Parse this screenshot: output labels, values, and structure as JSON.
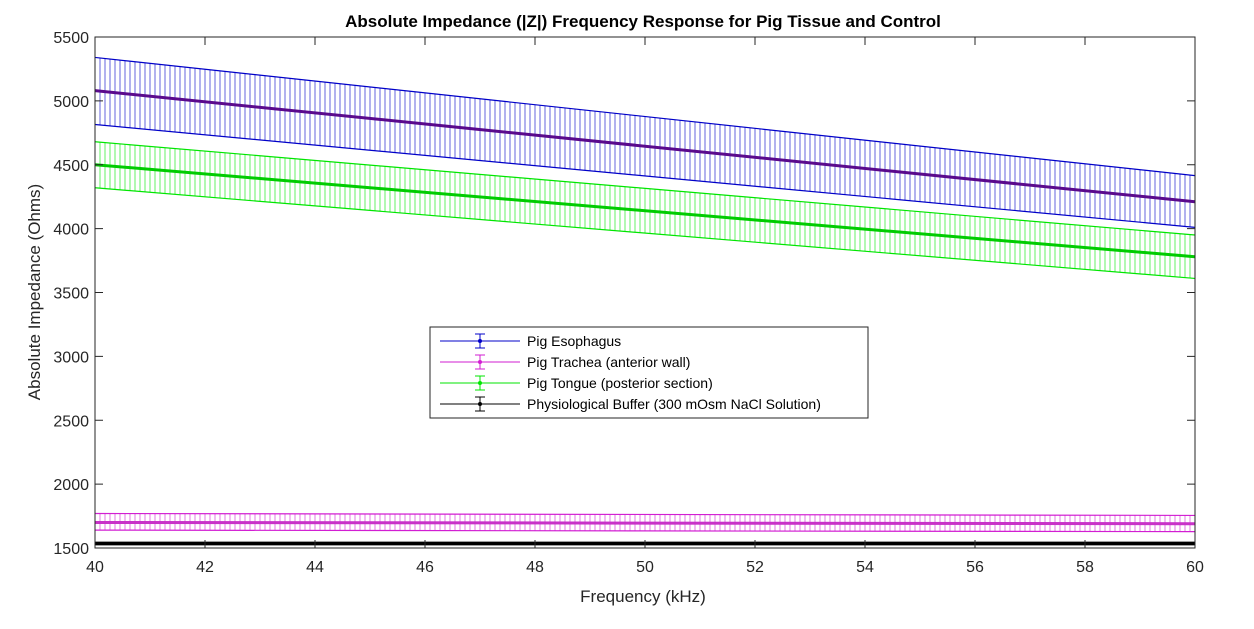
{
  "chart_data": {
    "type": "line",
    "title": "Absolute Impedance (|Z|) Frequency Response for Pig Tissue and Control",
    "xlabel": "Frequency (kHz)",
    "ylabel": "Absolute Impedance (Ohms)",
    "xlim": [
      40,
      60
    ],
    "ylim": [
      1500,
      5500
    ],
    "x_ticks": [
      "40",
      "42",
      "44",
      "46",
      "48",
      "50",
      "52",
      "54",
      "56",
      "58",
      "60"
    ],
    "y_ticks": [
      "1500",
      "2000",
      "2500",
      "3000",
      "3500",
      "4000",
      "4500",
      "5000",
      "5500"
    ],
    "grid": false,
    "error_bars": true,
    "legend_position": "center",
    "series": [
      {
        "name": "Pig Esophagus",
        "color": "#0000c8",
        "mean_color": "#5a0a8c",
        "x": [
          40,
          60
        ],
        "mean": [
          5080,
          4210
        ],
        "upper": [
          5340,
          4415
        ],
        "lower": [
          4815,
          4010
        ]
      },
      {
        "name": "Pig Trachea (anterior wall)",
        "color": "#d21ed2",
        "mean_color": "#c832c8",
        "x": [
          40,
          60
        ],
        "mean": [
          1700,
          1690
        ],
        "upper": [
          1770,
          1755
        ],
        "lower": [
          1640,
          1628
        ]
      },
      {
        "name": "Pig Tongue (posterior section)",
        "color": "#00e600",
        "mean_color": "#00cc00",
        "x": [
          40,
          60
        ],
        "mean": [
          4500,
          3780
        ],
        "upper": [
          4680,
          3950
        ],
        "lower": [
          4320,
          3610
        ]
      },
      {
        "name": "Physiological Buffer (300 mOsm NaCl Solution)",
        "color": "#000000",
        "mean_color": "#000000",
        "x": [
          40,
          60
        ],
        "mean": [
          1535,
          1535
        ],
        "upper": [
          1545,
          1545
        ],
        "lower": [
          1525,
          1525
        ]
      }
    ]
  }
}
